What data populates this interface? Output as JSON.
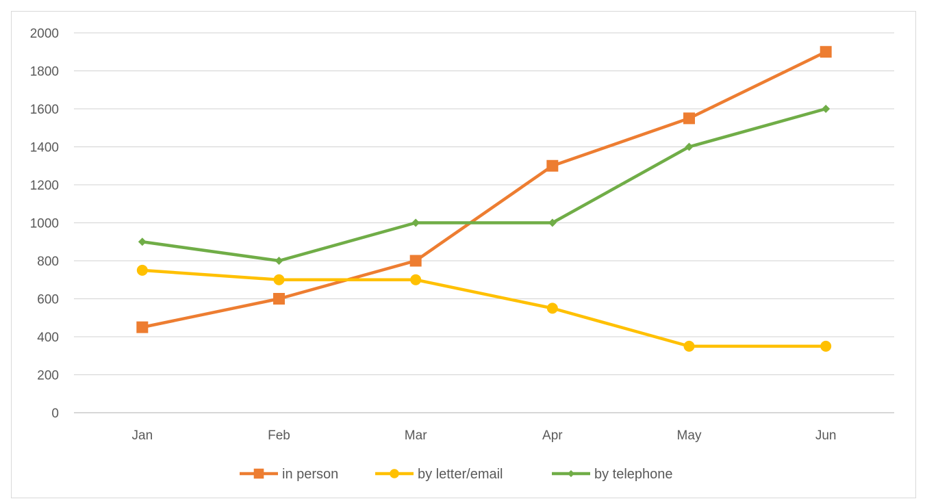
{
  "chart_data": {
    "type": "line",
    "title": "",
    "xlabel": "",
    "ylabel": "",
    "categories": [
      "Jan",
      "Feb",
      "Mar",
      "Apr",
      "May",
      "Jun"
    ],
    "ylim": [
      0,
      2000
    ],
    "yticks": [
      0,
      200,
      400,
      600,
      800,
      1000,
      1200,
      1400,
      1600,
      1800,
      2000
    ],
    "grid": true,
    "legend_position": "bottom",
    "series": [
      {
        "name": "in person",
        "color": "#ed7d31",
        "marker": "square",
        "values": [
          450,
          600,
          800,
          1300,
          1550,
          1900
        ]
      },
      {
        "name": "by letter/email",
        "color": "#ffc000",
        "marker": "circle",
        "values": [
          750,
          700,
          700,
          550,
          350,
          350
        ]
      },
      {
        "name": "by telephone",
        "color": "#70ad47",
        "marker": "diamond",
        "values": [
          900,
          800,
          1000,
          1000,
          1400,
          1600
        ]
      }
    ]
  }
}
